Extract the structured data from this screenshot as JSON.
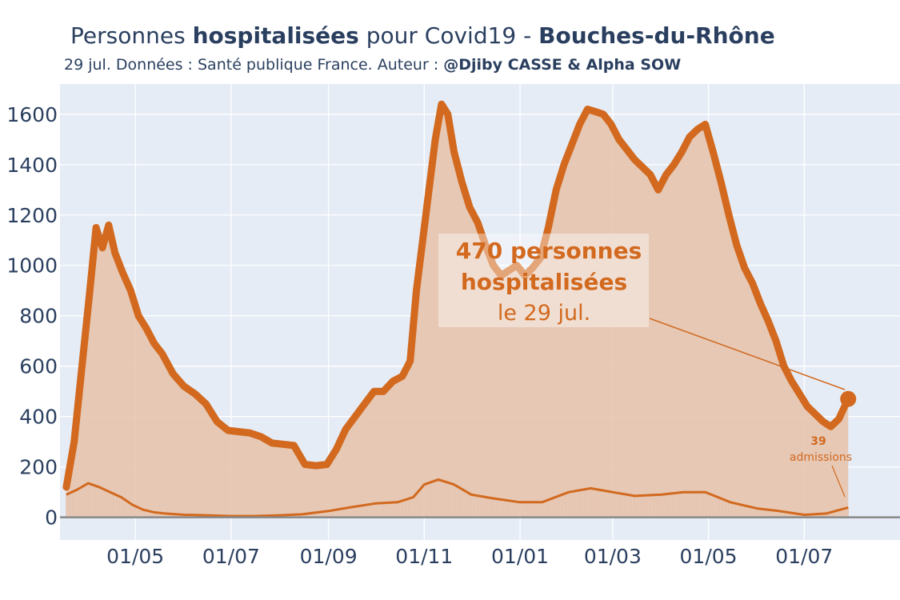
{
  "title": {
    "part1": "Personnes ",
    "part2": "hospitalisées",
    "part3": " pour Covid19 - ",
    "part4": "Bouches-du-Rhône"
  },
  "subtitle": {
    "text": "29 jul. Données : Santé publique France. Auteur : ",
    "author": "@Djiby CASSE & Alpha SOW"
  },
  "annotation": {
    "line1": "470 personnes",
    "line2": "hospitalisées",
    "line3": "le 29 jul."
  },
  "admissions_note": {
    "value": "39",
    "label": "admissions"
  },
  "colors": {
    "main": "#d2691e",
    "fill": "#e5c4ae",
    "background": "#e5ecf6",
    "text": "#2a3f5f",
    "zero_line": "#888888"
  },
  "chart_data": {
    "type": "area",
    "title": "Personnes hospitalisées pour Covid19 - Bouches-du-Rhône",
    "xlabel": "",
    "ylabel": "",
    "ylim": [
      -90,
      1720
    ],
    "xlim": [
      "2020-03-14",
      "2021-08-31"
    ],
    "grid": true,
    "x_ticks": [
      {
        "date": "2020-05-01",
        "label": "01/05"
      },
      {
        "date": "2020-07-01",
        "label": "01/07"
      },
      {
        "date": "2020-09-01",
        "label": "01/09"
      },
      {
        "date": "2020-11-01",
        "label": "01/11"
      },
      {
        "date": "2021-01-01",
        "label": "01/01"
      },
      {
        "date": "2021-03-01",
        "label": "01/03"
      },
      {
        "date": "2021-05-01",
        "label": "01/05"
      },
      {
        "date": "2021-07-01",
        "label": "01/07"
      }
    ],
    "y_ticks": [
      0,
      200,
      400,
      600,
      800,
      1000,
      1200,
      1400,
      1600
    ],
    "series": [
      {
        "name": "Personnes hospitalisées",
        "points": [
          [
            "2020-03-18",
            120
          ],
          [
            "2020-03-23",
            300
          ],
          [
            "2020-03-28",
            600
          ],
          [
            "2020-04-02",
            900
          ],
          [
            "2020-04-06",
            1150
          ],
          [
            "2020-04-10",
            1070
          ],
          [
            "2020-04-14",
            1160
          ],
          [
            "2020-04-18",
            1050
          ],
          [
            "2020-04-23",
            970
          ],
          [
            "2020-04-28",
            900
          ],
          [
            "2020-05-03",
            800
          ],
          [
            "2020-05-08",
            750
          ],
          [
            "2020-05-13",
            690
          ],
          [
            "2020-05-18",
            650
          ],
          [
            "2020-05-25",
            570
          ],
          [
            "2020-06-01",
            520
          ],
          [
            "2020-06-08",
            490
          ],
          [
            "2020-06-15",
            450
          ],
          [
            "2020-06-22",
            380
          ],
          [
            "2020-06-29",
            345
          ],
          [
            "2020-07-06",
            340
          ],
          [
            "2020-07-13",
            335
          ],
          [
            "2020-07-20",
            320
          ],
          [
            "2020-07-27",
            295
          ],
          [
            "2020-08-03",
            290
          ],
          [
            "2020-08-10",
            285
          ],
          [
            "2020-08-17",
            210
          ],
          [
            "2020-08-24",
            205
          ],
          [
            "2020-08-31",
            210
          ],
          [
            "2020-09-06",
            270
          ],
          [
            "2020-09-12",
            350
          ],
          [
            "2020-09-18",
            400
          ],
          [
            "2020-09-24",
            450
          ],
          [
            "2020-09-30",
            500
          ],
          [
            "2020-10-06",
            500
          ],
          [
            "2020-10-12",
            540
          ],
          [
            "2020-10-18",
            560
          ],
          [
            "2020-10-23",
            620
          ],
          [
            "2020-10-27",
            900
          ],
          [
            "2020-10-31",
            1100
          ],
          [
            "2020-11-04",
            1300
          ],
          [
            "2020-11-08",
            1500
          ],
          [
            "2020-11-12",
            1640
          ],
          [
            "2020-11-16",
            1600
          ],
          [
            "2020-11-20",
            1450
          ],
          [
            "2020-11-25",
            1330
          ],
          [
            "2020-11-30",
            1230
          ],
          [
            "2020-12-05",
            1170
          ],
          [
            "2020-12-10",
            1080
          ],
          [
            "2020-12-15",
            1000
          ],
          [
            "2020-12-20",
            960
          ],
          [
            "2020-12-25",
            980
          ],
          [
            "2020-12-30",
            1000
          ],
          [
            "2021-01-04",
            960
          ],
          [
            "2021-01-09",
            990
          ],
          [
            "2021-01-14",
            1030
          ],
          [
            "2021-01-19",
            1150
          ],
          [
            "2021-01-24",
            1300
          ],
          [
            "2021-01-29",
            1400
          ],
          [
            "2021-02-03",
            1480
          ],
          [
            "2021-02-08",
            1560
          ],
          [
            "2021-02-13",
            1620
          ],
          [
            "2021-02-18",
            1610
          ],
          [
            "2021-02-23",
            1600
          ],
          [
            "2021-02-28",
            1560
          ],
          [
            "2021-03-05",
            1500
          ],
          [
            "2021-03-10",
            1460
          ],
          [
            "2021-03-15",
            1420
          ],
          [
            "2021-03-20",
            1390
          ],
          [
            "2021-03-25",
            1360
          ],
          [
            "2021-03-30",
            1300
          ],
          [
            "2021-04-04",
            1360
          ],
          [
            "2021-04-09",
            1400
          ],
          [
            "2021-04-14",
            1450
          ],
          [
            "2021-04-19",
            1510
          ],
          [
            "2021-04-24",
            1540
          ],
          [
            "2021-04-29",
            1560
          ],
          [
            "2021-05-04",
            1450
          ],
          [
            "2021-05-09",
            1330
          ],
          [
            "2021-05-14",
            1200
          ],
          [
            "2021-05-19",
            1080
          ],
          [
            "2021-05-24",
            990
          ],
          [
            "2021-05-29",
            930
          ],
          [
            "2021-06-03",
            850
          ],
          [
            "2021-06-08",
            780
          ],
          [
            "2021-06-13",
            700
          ],
          [
            "2021-06-18",
            600
          ],
          [
            "2021-06-23",
            540
          ],
          [
            "2021-06-28",
            490
          ],
          [
            "2021-07-03",
            440
          ],
          [
            "2021-07-08",
            410
          ],
          [
            "2021-07-13",
            380
          ],
          [
            "2021-07-18",
            360
          ],
          [
            "2021-07-23",
            390
          ],
          [
            "2021-07-29",
            470
          ]
        ]
      },
      {
        "name": "admissions",
        "points": [
          [
            "2020-03-18",
            90
          ],
          [
            "2020-03-25",
            110
          ],
          [
            "2020-04-01",
            135
          ],
          [
            "2020-04-08",
            120
          ],
          [
            "2020-04-15",
            100
          ],
          [
            "2020-04-22",
            80
          ],
          [
            "2020-04-29",
            50
          ],
          [
            "2020-05-06",
            30
          ],
          [
            "2020-05-13",
            20
          ],
          [
            "2020-05-20",
            15
          ],
          [
            "2020-06-01",
            10
          ],
          [
            "2020-06-15",
            8
          ],
          [
            "2020-07-01",
            5
          ],
          [
            "2020-07-15",
            5
          ],
          [
            "2020-08-01",
            8
          ],
          [
            "2020-08-15",
            12
          ],
          [
            "2020-09-01",
            25
          ],
          [
            "2020-09-15",
            40
          ],
          [
            "2020-10-01",
            55
          ],
          [
            "2020-10-15",
            60
          ],
          [
            "2020-10-25",
            80
          ],
          [
            "2020-11-01",
            130
          ],
          [
            "2020-11-10",
            150
          ],
          [
            "2020-11-20",
            130
          ],
          [
            "2020-12-01",
            90
          ],
          [
            "2020-12-15",
            75
          ],
          [
            "2021-01-01",
            60
          ],
          [
            "2021-01-15",
            60
          ],
          [
            "2021-02-01",
            100
          ],
          [
            "2021-02-15",
            115
          ],
          [
            "2021-03-01",
            100
          ],
          [
            "2021-03-15",
            85
          ],
          [
            "2021-04-01",
            90
          ],
          [
            "2021-04-15",
            100
          ],
          [
            "2021-04-29",
            100
          ],
          [
            "2021-05-15",
            60
          ],
          [
            "2021-06-01",
            35
          ],
          [
            "2021-06-15",
            25
          ],
          [
            "2021-07-01",
            10
          ],
          [
            "2021-07-15",
            15
          ],
          [
            "2021-07-29",
            39
          ]
        ]
      }
    ]
  }
}
